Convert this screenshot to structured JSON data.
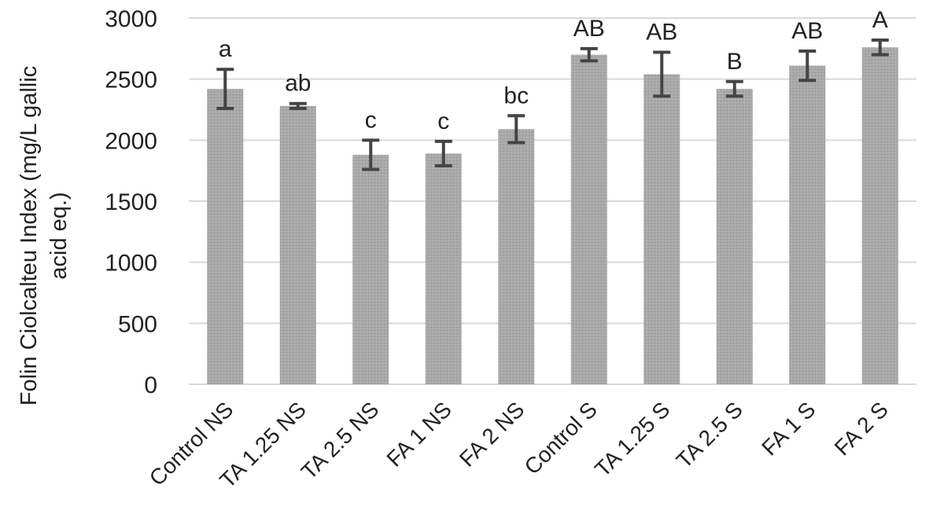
{
  "chart_data": {
    "type": "bar",
    "title": "",
    "xlabel": "",
    "ylabel_lines": [
      "Folin Ciolcalteu Index (mg/L gallic",
      "acid eq.)"
    ],
    "categories": [
      "Control NS",
      "TA 1.25 NS",
      "TA 2.5 NS",
      "FA 1 NS",
      "FA 2 NS",
      "Control S",
      "TA 1.25 S",
      "TA 2.5 S",
      "FA 1 S",
      "FA 2 S"
    ],
    "series": [
      {
        "values": [
          2420,
          2280,
          1880,
          1890,
          2090,
          2700,
          2540,
          2420,
          2610,
          2760
        ],
        "errors": [
          160,
          20,
          120,
          100,
          110,
          50,
          180,
          60,
          120,
          60
        ],
        "significance_letters": [
          "a",
          "ab",
          "c",
          "c",
          "bc",
          "AB",
          "AB",
          "B",
          "AB",
          "A"
        ]
      }
    ],
    "ylim": [
      0,
      3000
    ],
    "yticks": [
      0,
      500,
      1000,
      1500,
      2000,
      2500,
      3000
    ],
    "grid": true,
    "legend": "none",
    "colors": {
      "bar": "#a9a9a9",
      "error_bar": "#444444",
      "grid": "#d9d9d9",
      "text": "#222222"
    }
  }
}
